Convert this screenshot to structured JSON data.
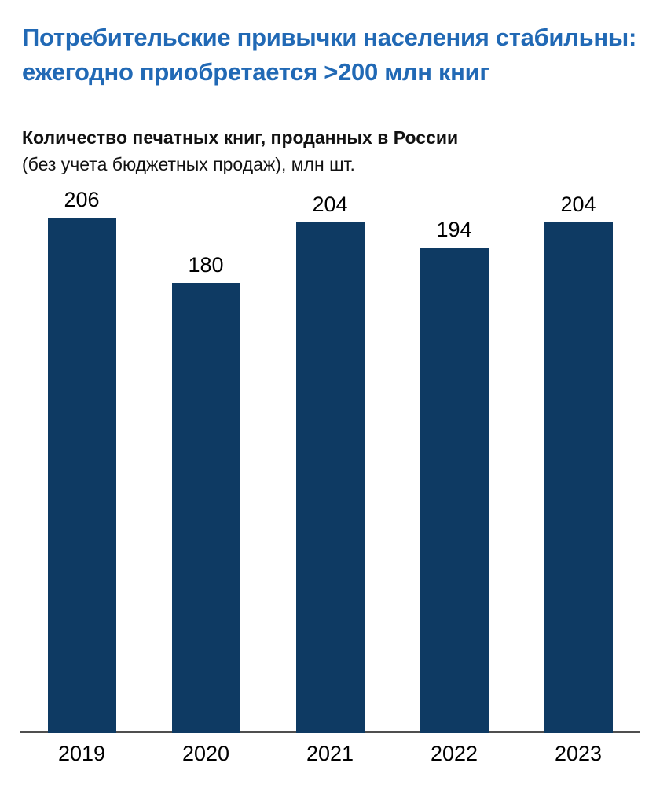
{
  "header": {
    "title_line1": "Потребительские привычки населения стабильны:",
    "title_line2": "ежегодно приобретается >200 млн книг",
    "title_color": "#2169b5"
  },
  "chart": {
    "subtitle_bold": "Количество печатных книг, проданных в России",
    "subtitle_regular": "(без учета бюджетных продаж), млн шт."
  },
  "chart_data": {
    "type": "bar",
    "title": "Количество печатных книг, проданных в России (без учета бюджетных продаж), млн шт.",
    "categories": [
      "2019",
      "2020",
      "2021",
      "2022",
      "2023"
    ],
    "values": [
      206,
      180,
      204,
      194,
      204
    ],
    "xlabel": "",
    "ylabel": "млн шт.",
    "ylim": [
      0,
      206
    ],
    "grid": false,
    "data_labels": true,
    "legend": "none",
    "bar_color": "#0e3a63",
    "axis_line_color": "#4f4f4f",
    "label_color": "#000000"
  }
}
